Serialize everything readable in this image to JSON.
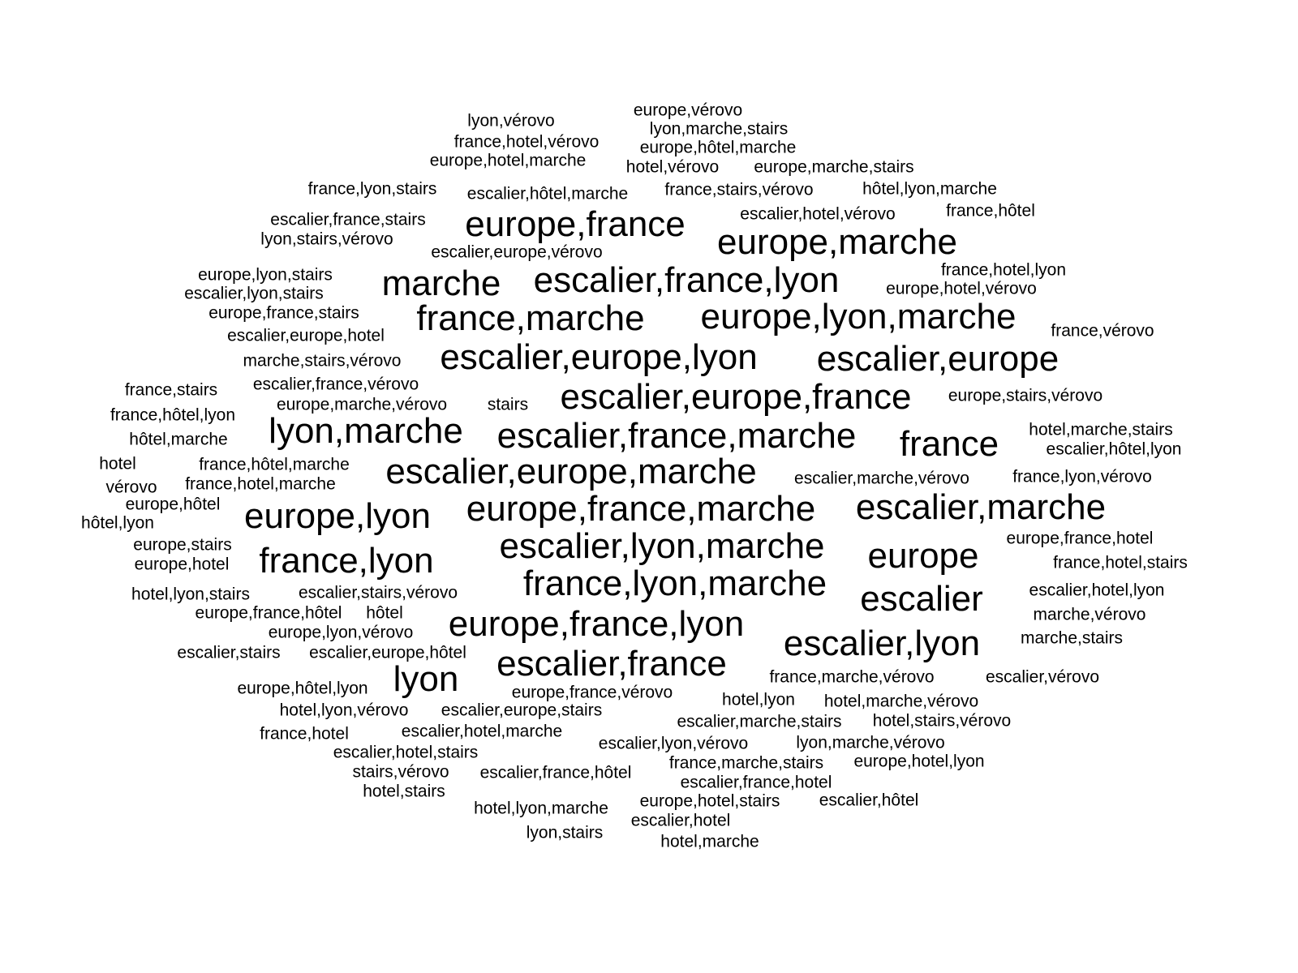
{
  "chart_data": {
    "type": "wordcloud",
    "color": "#000000",
    "words": [
      {
        "text": "lyon,vérovo",
        "weight": 1
      },
      {
        "text": "europe,vérovo",
        "weight": 1
      },
      {
        "text": "lyon,marche,stairs",
        "weight": 1
      },
      {
        "text": "france,hotel,vérovo",
        "weight": 1
      },
      {
        "text": "europe,hôtel,marche",
        "weight": 1
      },
      {
        "text": "europe,hotel,marche",
        "weight": 1
      },
      {
        "text": "hotel,vérovo",
        "weight": 1
      },
      {
        "text": "europe,marche,stairs",
        "weight": 1
      },
      {
        "text": "france,lyon,stairs",
        "weight": 1
      },
      {
        "text": "escalier,hôtel,marche",
        "weight": 1
      },
      {
        "text": "france,stairs,vérovo",
        "weight": 1
      },
      {
        "text": "hôtel,lyon,marche",
        "weight": 1
      },
      {
        "text": "europe,france",
        "weight": 3
      },
      {
        "text": "escalier,france,stairs",
        "weight": 1
      },
      {
        "text": "escalier,hotel,vérovo",
        "weight": 1
      },
      {
        "text": "france,hôtel",
        "weight": 1
      },
      {
        "text": "lyon,stairs,vérovo",
        "weight": 1
      },
      {
        "text": "europe,marche",
        "weight": 3
      },
      {
        "text": "escalier,europe,vérovo",
        "weight": 1
      },
      {
        "text": "europe,lyon,stairs",
        "weight": 1
      },
      {
        "text": "france,hotel,lyon",
        "weight": 1
      },
      {
        "text": "marche",
        "weight": 3
      },
      {
        "text": "escalier,france,lyon",
        "weight": 3
      },
      {
        "text": "escalier,lyon,stairs",
        "weight": 1
      },
      {
        "text": "europe,hotel,vérovo",
        "weight": 1
      },
      {
        "text": "europe,france,stairs",
        "weight": 1
      },
      {
        "text": "france,marche",
        "weight": 3
      },
      {
        "text": "europe,lyon,marche",
        "weight": 3
      },
      {
        "text": "escalier,europe,hotel",
        "weight": 1
      },
      {
        "text": "france,vérovo",
        "weight": 1
      },
      {
        "text": "marche,stairs,vérovo",
        "weight": 1
      },
      {
        "text": "escalier,europe,lyon",
        "weight": 3
      },
      {
        "text": "escalier,europe",
        "weight": 3
      },
      {
        "text": "france,stairs",
        "weight": 1
      },
      {
        "text": "escalier,france,vérovo",
        "weight": 1
      },
      {
        "text": "escalier,europe,france",
        "weight": 3
      },
      {
        "text": "europe,stairs,vérovo",
        "weight": 1
      },
      {
        "text": "france,hôtel,lyon",
        "weight": 1
      },
      {
        "text": "europe,marche,vérovo",
        "weight": 1
      },
      {
        "text": "stairs",
        "weight": 1
      },
      {
        "text": "hotel,marche,stairs",
        "weight": 1
      },
      {
        "text": "lyon,marche",
        "weight": 3
      },
      {
        "text": "escalier,france,marche",
        "weight": 3
      },
      {
        "text": "france",
        "weight": 3
      },
      {
        "text": "hôtel,marche",
        "weight": 1
      },
      {
        "text": "escalier,hôtel,lyon",
        "weight": 1
      },
      {
        "text": "hotel",
        "weight": 1
      },
      {
        "text": "france,hôtel,marche",
        "weight": 1
      },
      {
        "text": "escalier,europe,marche",
        "weight": 3
      },
      {
        "text": "escalier,marche,vérovo",
        "weight": 1
      },
      {
        "text": "france,lyon,vérovo",
        "weight": 1
      },
      {
        "text": "vérovo",
        "weight": 1
      },
      {
        "text": "france,hotel,marche",
        "weight": 1
      },
      {
        "text": "europe,hôtel",
        "weight": 1
      },
      {
        "text": "europe,france,marche",
        "weight": 3
      },
      {
        "text": "escalier,marche",
        "weight": 3
      },
      {
        "text": "hôtel,lyon",
        "weight": 1
      },
      {
        "text": "europe,lyon",
        "weight": 3
      },
      {
        "text": "europe,stairs",
        "weight": 1
      },
      {
        "text": "europe,france,hotel",
        "weight": 1
      },
      {
        "text": "escalier,lyon,marche",
        "weight": 3
      },
      {
        "text": "europe,hotel",
        "weight": 1
      },
      {
        "text": "france,lyon",
        "weight": 3
      },
      {
        "text": "europe",
        "weight": 3
      },
      {
        "text": "france,hotel,stairs",
        "weight": 1
      },
      {
        "text": "hotel,lyon,stairs",
        "weight": 1
      },
      {
        "text": "escalier,stairs,vérovo",
        "weight": 1
      },
      {
        "text": "france,lyon,marche",
        "weight": 3
      },
      {
        "text": "escalier,hotel,lyon",
        "weight": 1
      },
      {
        "text": "escalier",
        "weight": 3
      },
      {
        "text": "europe,france,hôtel",
        "weight": 1
      },
      {
        "text": "hôtel",
        "weight": 1
      },
      {
        "text": "marche,vérovo",
        "weight": 1
      },
      {
        "text": "europe,france,lyon",
        "weight": 3
      },
      {
        "text": "europe,lyon,vérovo",
        "weight": 1
      },
      {
        "text": "marche,stairs",
        "weight": 1
      },
      {
        "text": "escalier,lyon",
        "weight": 3
      },
      {
        "text": "escalier,stairs",
        "weight": 1
      },
      {
        "text": "escalier,europe,hôtel",
        "weight": 1
      },
      {
        "text": "escalier,france",
        "weight": 3
      },
      {
        "text": "lyon",
        "weight": 3
      },
      {
        "text": "france,marche,vérovo",
        "weight": 1
      },
      {
        "text": "escalier,vérovo",
        "weight": 1
      },
      {
        "text": "europe,hôtel,lyon",
        "weight": 1
      },
      {
        "text": "europe,france,vérovo",
        "weight": 1
      },
      {
        "text": "hotel,lyon",
        "weight": 1
      },
      {
        "text": "hotel,marche,vérovo",
        "weight": 1
      },
      {
        "text": "hotel,lyon,vérovo",
        "weight": 1
      },
      {
        "text": "escalier,europe,stairs",
        "weight": 1
      },
      {
        "text": "escalier,marche,stairs",
        "weight": 1
      },
      {
        "text": "hotel,stairs,vérovo",
        "weight": 1
      },
      {
        "text": "france,hotel",
        "weight": 1
      },
      {
        "text": "escalier,hotel,marche",
        "weight": 1
      },
      {
        "text": "escalier,lyon,vérovo",
        "weight": 1
      },
      {
        "text": "lyon,marche,vérovo",
        "weight": 1
      },
      {
        "text": "escalier,hotel,stairs",
        "weight": 1
      },
      {
        "text": "france,marche,stairs",
        "weight": 1
      },
      {
        "text": "europe,hotel,lyon",
        "weight": 1
      },
      {
        "text": "stairs,vérovo",
        "weight": 1
      },
      {
        "text": "escalier,france,hôtel",
        "weight": 1
      },
      {
        "text": "escalier,france,hotel",
        "weight": 1
      },
      {
        "text": "hotel,stairs",
        "weight": 1
      },
      {
        "text": "hotel,lyon,marche",
        "weight": 1
      },
      {
        "text": "europe,hotel,stairs",
        "weight": 1
      },
      {
        "text": "escalier,hôtel",
        "weight": 1
      },
      {
        "text": "lyon,stairs",
        "weight": 1
      },
      {
        "text": "escalier,hotel",
        "weight": 1
      },
      {
        "text": "hotel,marche",
        "weight": 1
      }
    ]
  }
}
